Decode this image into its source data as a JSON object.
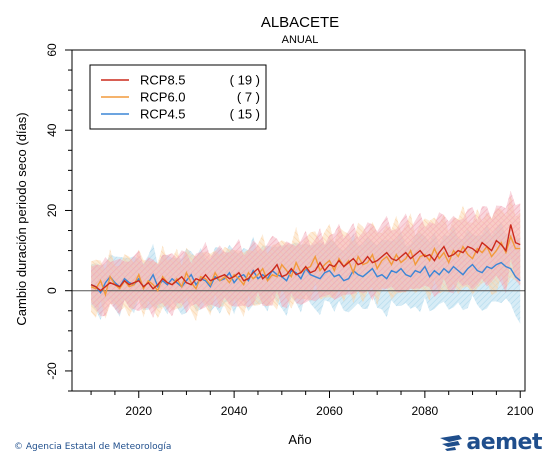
{
  "chart_data": {
    "type": "line",
    "title": "ALBACETE",
    "subtitle": "ANUAL",
    "xlabel": "Año",
    "ylabel": "Cambio duración periodo seco (días)",
    "xlim": [
      2006,
      2101
    ],
    "ylim": [
      -25,
      60
    ],
    "xticks": [
      2020,
      2040,
      2060,
      2080,
      2100
    ],
    "yticks": [
      -20,
      0,
      20,
      40,
      60
    ],
    "legend_position": "top-left",
    "series": [
      {
        "name": "RCP8.5",
        "count": "( 19 )",
        "color": "#cc2a1c",
        "band_color": "#f2a6b6",
        "x": [
          2010,
          2011,
          2012,
          2013,
          2014,
          2015,
          2016,
          2017,
          2018,
          2019,
          2020,
          2021,
          2022,
          2023,
          2024,
          2025,
          2026,
          2027,
          2028,
          2029,
          2030,
          2031,
          2032,
          2033,
          2034,
          2035,
          2036,
          2037,
          2038,
          2039,
          2040,
          2041,
          2042,
          2043,
          2044,
          2045,
          2046,
          2047,
          2048,
          2049,
          2050,
          2051,
          2052,
          2053,
          2054,
          2055,
          2056,
          2057,
          2058,
          2059,
          2060,
          2061,
          2062,
          2063,
          2064,
          2065,
          2066,
          2067,
          2068,
          2069,
          2070,
          2071,
          2072,
          2073,
          2074,
          2075,
          2076,
          2077,
          2078,
          2079,
          2080,
          2081,
          2082,
          2083,
          2084,
          2085,
          2086,
          2087,
          2088,
          2089,
          2090,
          2091,
          2092,
          2093,
          2094,
          2095,
          2096,
          2097,
          2098,
          2099,
          2100
        ],
        "values": [
          1.5,
          1.0,
          0.0,
          1.0,
          2.0,
          1.5,
          1.0,
          2.5,
          1.5,
          2.0,
          2.5,
          1.0,
          2.0,
          0.5,
          1.5,
          3.0,
          2.0,
          1.5,
          2.5,
          3.5,
          2.0,
          1.5,
          3.0,
          2.5,
          4.0,
          2.5,
          3.0,
          3.5,
          4.0,
          3.0,
          3.5,
          4.5,
          2.5,
          3.0,
          4.5,
          5.5,
          3.0,
          4.0,
          5.0,
          6.5,
          3.5,
          4.0,
          5.5,
          4.0,
          4.5,
          6.0,
          4.5,
          5.0,
          7.0,
          5.0,
          6.5,
          6.0,
          7.5,
          6.0,
          7.0,
          8.0,
          6.5,
          7.0,
          8.5,
          7.0,
          7.5,
          8.5,
          9.5,
          8.0,
          7.5,
          8.5,
          9.5,
          8.0,
          9.0,
          10.0,
          8.5,
          9.0,
          7.5,
          9.5,
          11.0,
          8.5,
          9.0,
          10.0,
          9.5,
          11.0,
          10.5,
          9.5,
          12.0,
          11.0,
          10.0,
          12.5,
          11.5,
          10.0,
          16.5,
          12.0,
          11.5
        ]
      },
      {
        "name": "RCP6.0",
        "count": "(   7 )",
        "color": "#f29a3b",
        "band_color": "#fbd2a4",
        "x": [
          2010,
          2011,
          2012,
          2013,
          2014,
          2015,
          2016,
          2017,
          2018,
          2019,
          2020,
          2021,
          2022,
          2023,
          2024,
          2025,
          2026,
          2027,
          2028,
          2029,
          2030,
          2031,
          2032,
          2033,
          2034,
          2035,
          2036,
          2037,
          2038,
          2039,
          2040,
          2041,
          2042,
          2043,
          2044,
          2045,
          2046,
          2047,
          2048,
          2049,
          2050,
          2051,
          2052,
          2053,
          2054,
          2055,
          2056,
          2057,
          2058,
          2059,
          2060,
          2061,
          2062,
          2063,
          2064,
          2065,
          2066,
          2067,
          2068,
          2069,
          2070,
          2071,
          2072,
          2073,
          2074,
          2075,
          2076,
          2077,
          2078,
          2079,
          2080,
          2081,
          2082,
          2083,
          2084,
          2085,
          2086,
          2087,
          2088,
          2089,
          2090,
          2091,
          2092,
          2093,
          2094,
          2095,
          2096,
          2097,
          2098,
          2099,
          2100
        ],
        "values": [
          1.0,
          0.5,
          2.5,
          -1.0,
          3.5,
          1.5,
          0.5,
          2.5,
          1.0,
          1.5,
          4.0,
          0.5,
          2.5,
          1.5,
          0.0,
          3.5,
          2.0,
          1.5,
          3.0,
          1.0,
          4.5,
          2.0,
          0.5,
          3.5,
          3.0,
          1.5,
          4.5,
          2.5,
          3.5,
          2.0,
          4.0,
          3.0,
          1.5,
          4.5,
          3.0,
          4.0,
          5.5,
          2.5,
          4.0,
          3.5,
          6.5,
          5.0,
          3.5,
          7.0,
          4.5,
          5.5,
          6.0,
          8.5,
          5.0,
          6.5,
          7.5,
          5.0,
          8.0,
          6.0,
          7.5,
          4.5,
          8.5,
          6.5,
          7.0,
          9.0,
          5.5,
          7.5,
          8.5,
          6.5,
          9.0,
          7.0,
          8.0,
          10.0,
          6.5,
          8.5,
          9.0,
          7.5,
          10.5,
          8.0,
          9.5,
          7.0,
          10.0,
          8.5,
          11.0,
          9.0,
          8.0,
          10.5,
          9.5,
          11.0,
          8.5,
          10.0,
          12.0,
          9.5,
          13.5,
          10.5,
          10.5
        ]
      },
      {
        "name": "RCP4.5",
        "count": "( 15 )",
        "color": "#3b86d6",
        "band_color": "#a6d4ea",
        "x": [
          2010,
          2011,
          2012,
          2013,
          2014,
          2015,
          2016,
          2017,
          2018,
          2019,
          2020,
          2021,
          2022,
          2023,
          2024,
          2025,
          2026,
          2027,
          2028,
          2029,
          2030,
          2031,
          2032,
          2033,
          2034,
          2035,
          2036,
          2037,
          2038,
          2039,
          2040,
          2041,
          2042,
          2043,
          2044,
          2045,
          2046,
          2047,
          2048,
          2049,
          2050,
          2051,
          2052,
          2053,
          2054,
          2055,
          2056,
          2057,
          2058,
          2059,
          2060,
          2061,
          2062,
          2063,
          2064,
          2065,
          2066,
          2067,
          2068,
          2069,
          2070,
          2071,
          2072,
          2073,
          2074,
          2075,
          2076,
          2077,
          2078,
          2079,
          2080,
          2081,
          2082,
          2083,
          2084,
          2085,
          2086,
          2087,
          2088,
          2089,
          2090,
          2091,
          2092,
          2093,
          2094,
          2095,
          2096,
          2097,
          2098,
          2099,
          2100
        ],
        "values": [
          1.5,
          1.0,
          -0.5,
          2.0,
          3.5,
          2.0,
          1.0,
          3.0,
          2.0,
          1.5,
          3.0,
          1.0,
          2.0,
          4.0,
          1.0,
          2.5,
          1.5,
          3.0,
          2.0,
          1.0,
          2.5,
          4.0,
          1.5,
          3.0,
          2.5,
          1.0,
          3.5,
          2.5,
          3.0,
          4.5,
          2.0,
          3.5,
          4.0,
          2.5,
          5.0,
          3.0,
          4.0,
          3.0,
          5.0,
          4.0,
          3.5,
          2.5,
          5.0,
          4.5,
          3.0,
          5.5,
          4.0,
          3.5,
          3.0,
          4.5,
          5.0,
          3.5,
          4.0,
          2.5,
          3.0,
          5.0,
          4.0,
          3.5,
          4.5,
          5.5,
          3.5,
          4.0,
          3.0,
          5.0,
          4.5,
          5.5,
          4.0,
          3.5,
          5.0,
          4.5,
          6.0,
          3.5,
          5.0,
          4.0,
          5.5,
          4.5,
          6.0,
          5.0,
          4.0,
          5.5,
          6.5,
          5.0,
          4.5,
          6.0,
          5.5,
          6.5,
          7.0,
          6.0,
          5.5,
          3.5,
          2.5
        ]
      }
    ]
  },
  "footer": {
    "credit": "© Agencia Estatal de Meteorología",
    "logo_text": "aemet"
  }
}
